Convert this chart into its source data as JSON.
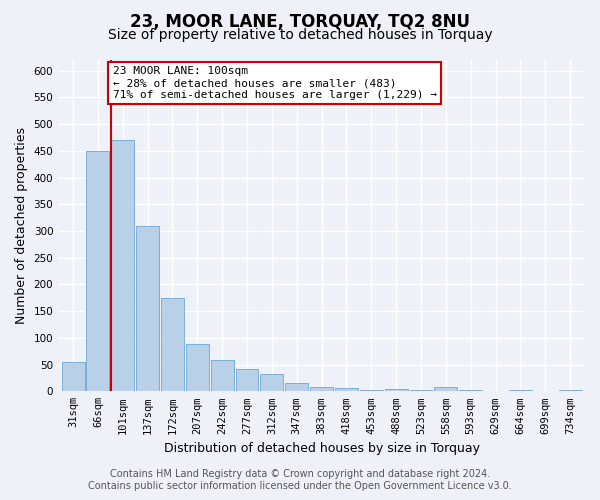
{
  "title": "23, MOOR LANE, TORQUAY, TQ2 8NU",
  "subtitle": "Size of property relative to detached houses in Torquay",
  "xlabel": "Distribution of detached houses by size in Torquay",
  "ylabel": "Number of detached properties",
  "categories": [
    "31sqm",
    "66sqm",
    "101sqm",
    "137sqm",
    "172sqm",
    "207sqm",
    "242sqm",
    "277sqm",
    "312sqm",
    "347sqm",
    "383sqm",
    "418sqm",
    "453sqm",
    "488sqm",
    "523sqm",
    "558sqm",
    "593sqm",
    "629sqm",
    "664sqm",
    "699sqm",
    "734sqm"
  ],
  "values": [
    55,
    450,
    470,
    310,
    175,
    88,
    58,
    42,
    32,
    15,
    8,
    6,
    2,
    5,
    2,
    8,
    2,
    0,
    3,
    0,
    3
  ],
  "bar_color": "#b8d0e8",
  "bar_edge_color": "#7aafd4",
  "highlight_index": 2,
  "highlight_line_color": "#cc0000",
  "annotation_line1": "23 MOOR LANE: 100sqm",
  "annotation_line2": "← 28% of detached houses are smaller (483)",
  "annotation_line3": "71% of semi-detached houses are larger (1,229) →",
  "annotation_box_color": "#ffffff",
  "annotation_box_edge_color": "#cc0000",
  "ylim": [
    0,
    620
  ],
  "yticks": [
    0,
    50,
    100,
    150,
    200,
    250,
    300,
    350,
    400,
    450,
    500,
    550,
    600
  ],
  "footer_line1": "Contains HM Land Registry data © Crown copyright and database right 2024.",
  "footer_line2": "Contains public sector information licensed under the Open Government Licence v3.0.",
  "background_color": "#eef2f8",
  "plot_background_color": "#eef2f8",
  "grid_color": "#ffffff",
  "title_fontsize": 12,
  "subtitle_fontsize": 10,
  "axis_label_fontsize": 9,
  "tick_fontsize": 7.5,
  "footer_fontsize": 7
}
